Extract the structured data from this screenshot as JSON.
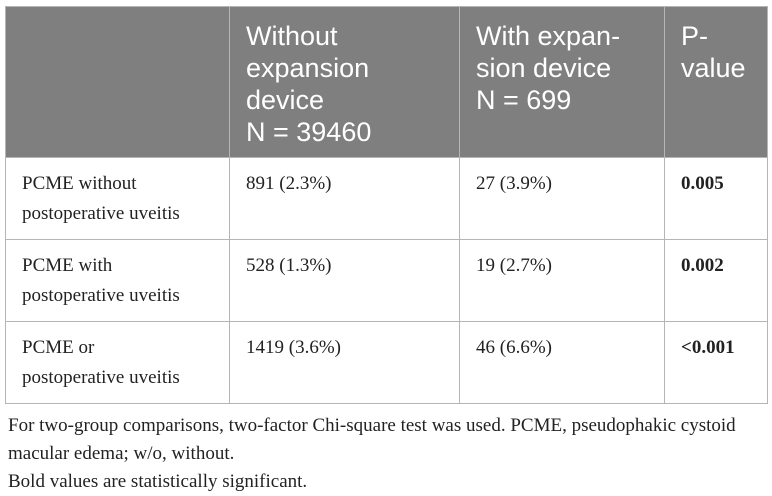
{
  "table": {
    "headers": [
      {
        "lines": [
          ""
        ]
      },
      {
        "lines": [
          "Without",
          "expansion",
          "device",
          "N = 39460"
        ]
      },
      {
        "lines": [
          "With expan-",
          "sion device",
          "N = 699"
        ]
      },
      {
        "lines": [
          "P-",
          "value"
        ]
      }
    ],
    "rows": [
      {
        "label_lines": [
          "PCME without",
          "postoperative uveitis"
        ],
        "without": "891 (2.3%)",
        "with": "27 (3.9%)",
        "p": "0.005"
      },
      {
        "label_lines": [
          "PCME with",
          "postoperative uveitis"
        ],
        "without": "528 (1.3%)",
        "with": "19 (2.7%)",
        "p": "0.002"
      },
      {
        "label_lines": [
          "PCME or",
          "postoperative uveitis"
        ],
        "without": "1419 (3.6%)",
        "with": "46 (6.6%)",
        "p": "<0.001"
      }
    ]
  },
  "footnotes": {
    "line1": "For two-group comparisons, two-factor Chi-square test was used. PCME, pseudophakic cystoid macular edema; w/o, without.",
    "line2": "Bold values are statistically significant."
  }
}
